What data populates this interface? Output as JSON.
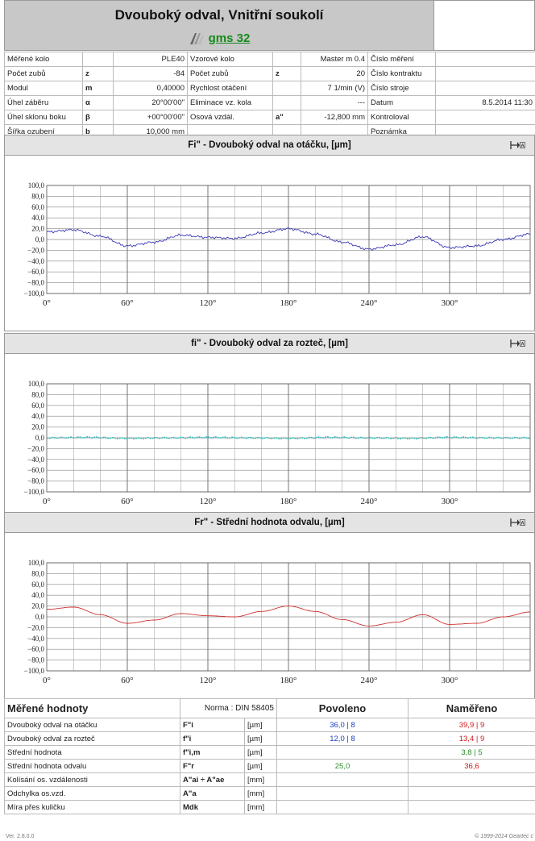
{
  "header": {
    "title": "Dvouboký odval,  Vnitřní soukolí",
    "logo_text": "gms 32"
  },
  "params": {
    "rows": [
      {
        "l1": "Měřené kolo",
        "s1": "",
        "v1": "PLE40",
        "l2": "Vzorové kolo",
        "s2": "",
        "v2": "Master m 0.4",
        "l3": "Číslo měření",
        "v3": ""
      },
      {
        "l1": "Počet zubů",
        "s1": "z",
        "v1": "-84",
        "l2": "Počet zubů",
        "s2": "z",
        "v2": "20",
        "l3": "Číslo kontraktu",
        "v3": ""
      },
      {
        "l1": "Modul",
        "s1": "m",
        "v1": "0,40000",
        "l2": "Rychlost otáčení",
        "s2": "",
        "v2": "7 1/min  (V)",
        "l3": "Číslo stroje",
        "v3": ""
      },
      {
        "l1": "Úhel záběru",
        "s1": "α",
        "v1": "20°00'00\"",
        "l2": "Eliminace vz. kola",
        "s2": "",
        "v2": "---",
        "l3": "Datum",
        "v3": "8.5.2014 11:30"
      },
      {
        "l1": "Úhel sklonu boku",
        "s1": "β",
        "v1": "+00°00'00\"",
        "l2": "Osová vzdál.",
        "s2": "a\"",
        "v2": "-12,800 mm",
        "l3": "Kontroloval",
        "v3": ""
      },
      {
        "l1": "Šířka ozubení",
        "s1": "b",
        "v1": "10,000 mm",
        "l2": "",
        "s2": "",
        "v2": "",
        "l3": "Poznámka",
        "v3": ""
      }
    ]
  },
  "charts": [
    {
      "title": "Fi\" - Dvouboký odval na otáčku,   [µm]",
      "color": "#3a3ab8",
      "icon": "probe-icon"
    },
    {
      "title": "fi\" - Dvouboký odval za rozteč,   [µm]",
      "color": "#30b8b8",
      "icon": "probe-icon"
    },
    {
      "title": "Fr\" - Střední hodnota odvalu,   [µm]",
      "color": "#d03030",
      "icon": "probe-icon"
    }
  ],
  "chart_data": [
    {
      "type": "line",
      "title": "Fi\" - Dvouboký odval na otáčku,   [µm]",
      "ylim": [
        -100,
        100
      ],
      "xlim": [
        0,
        360
      ],
      "ytick_labels": [
        "100,0",
        "80,0",
        "60,0",
        "40,0",
        "20,0",
        "0,0",
        "−20,0",
        "−40,0",
        "−60,0",
        "−80,0",
        "−100,0"
      ],
      "xtick_labels": [
        "0°",
        "60°",
        "120°",
        "180°",
        "240°",
        "300°"
      ],
      "series": [
        {
          "x": [
            0,
            20,
            40,
            60,
            80,
            100,
            120,
            140,
            160,
            180,
            200,
            220,
            240,
            260,
            280,
            300,
            320,
            340,
            360
          ],
          "values": [
            14,
            18,
            6,
            -12,
            -5,
            8,
            4,
            2,
            12,
            20,
            10,
            -5,
            -18,
            -10,
            5,
            -15,
            -12,
            0,
            10
          ]
        }
      ]
    },
    {
      "type": "line",
      "title": "fi\" - Dvouboký odval za rozteč,   [µm]",
      "ylim": [
        -100,
        100
      ],
      "xlim": [
        0,
        360
      ],
      "ytick_labels": [
        "100,0",
        "80,0",
        "60,0",
        "40,0",
        "20,0",
        "0,0",
        "−20,0",
        "−40,0",
        "−60,0",
        "−80,0",
        "−100,0"
      ],
      "xtick_labels": [
        "0°",
        "60°",
        "120°",
        "180°",
        "240°",
        "300°"
      ],
      "series": [
        {
          "x": [
            0,
            30,
            60,
            90,
            120,
            150,
            180,
            210,
            240,
            270,
            300,
            330,
            360
          ],
          "values": [
            0,
            1,
            -1,
            0,
            1,
            0,
            -1,
            1,
            0,
            -1,
            1,
            0,
            0
          ]
        }
      ]
    },
    {
      "type": "line",
      "title": "Fr\" - Střední hodnota odvalu,   [µm]",
      "ylim": [
        -100,
        100
      ],
      "xlim": [
        0,
        360
      ],
      "ytick_labels": [
        "100,0",
        "80,0",
        "60,0",
        "40,0",
        "20,0",
        "0,0",
        "−20,0",
        "−40,0",
        "−60,0",
        "−80,0",
        "−100,0"
      ],
      "xtick_labels": [
        "0°",
        "60°",
        "120°",
        "180°",
        "240°",
        "300°"
      ],
      "series": [
        {
          "x": [
            0,
            20,
            40,
            60,
            80,
            100,
            120,
            140,
            160,
            180,
            200,
            220,
            240,
            260,
            280,
            300,
            320,
            340,
            360
          ],
          "values": [
            14,
            18,
            4,
            -12,
            -6,
            6,
            2,
            0,
            10,
            20,
            10,
            -5,
            -17,
            -10,
            4,
            -14,
            -12,
            0,
            9
          ]
        }
      ]
    }
  ],
  "results": {
    "title": "Měřené hodnoty",
    "norm": "Norma :  DIN 58405",
    "col_allowed": "Povoleno",
    "col_measured": "Naměřeno",
    "rows": [
      {
        "label": "Dvouboký odval na otáčku",
        "sym": "F\"i",
        "unit": "[µm]",
        "allowed": "36,0 | 8",
        "measured": "39,9 | 9",
        "mclass": "red"
      },
      {
        "label": "Dvouboký odval za rozteč",
        "sym": "f\"i",
        "unit": "[µm]",
        "allowed": "12,0 | 8",
        "measured": "13,4 | 9",
        "mclass": "red"
      },
      {
        "label": "Střední hodnota",
        "sym": "f\"i,m",
        "unit": "[µm]",
        "allowed": "",
        "measured": "3,8 | 5",
        "mclass": "green"
      },
      {
        "label": "Střední hodnota odvalu",
        "sym": "F\"r",
        "unit": "[µm]",
        "allowed": "25,0",
        "measured": "36,6",
        "mclass": "red"
      },
      {
        "label": "Kolísání os. vzdálenosti",
        "sym": "A\"ai ÷ A\"ae",
        "unit": "[mm]",
        "allowed": "",
        "measured": "",
        "mclass": ""
      },
      {
        "label": "Odchylka os.vzd.",
        "sym": "A\"a",
        "unit": "[mm]",
        "allowed": "",
        "measured": "",
        "mclass": ""
      },
      {
        "label": "Míra přes kuličku",
        "sym": "Mdk",
        "unit": "[mm]",
        "allowed": "",
        "measured": "",
        "mclass": ""
      }
    ]
  },
  "footer": {
    "version": "Ver. 2.8.0.0",
    "copyright": "© 1999-2014 Geartec c"
  }
}
